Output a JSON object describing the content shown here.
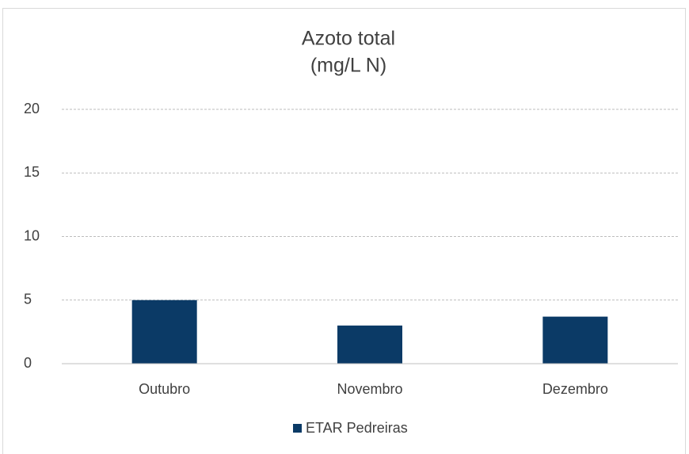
{
  "chart_data": {
    "type": "bar",
    "title": "Azoto total",
    "subtitle": "(mg/L N)",
    "categories": [
      "Outubro",
      "Novembro",
      "Dezembro"
    ],
    "series": [
      {
        "name": "ETAR Pedreiras",
        "color": "#0b3a66",
        "values": [
          5.0,
          3.0,
          3.7
        ]
      }
    ],
    "ylim": [
      0,
      20
    ],
    "yticks": [
      0,
      5,
      10,
      15,
      20
    ],
    "grid": true,
    "legend": "bottom"
  }
}
